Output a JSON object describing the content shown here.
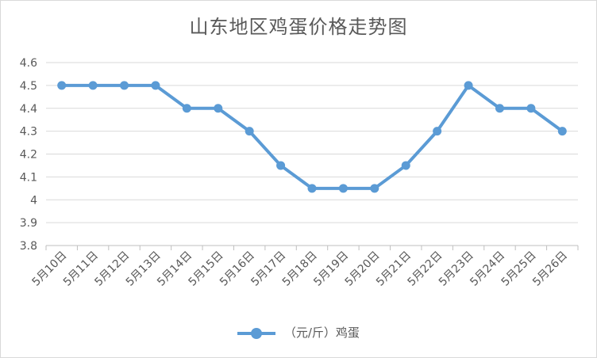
{
  "chart_data": {
    "type": "line",
    "title": "山东地区鸡蛋价格走势图",
    "categories": [
      "5月10日",
      "5月11日",
      "5月12日",
      "5月13日",
      "5月14日",
      "5月15日",
      "5月16日",
      "5月17日",
      "5月18日",
      "5月19日",
      "5月20日",
      "5月21日",
      "5月22日",
      "5月23日",
      "5月24日",
      "5月25日",
      "5月26日"
    ],
    "series": [
      {
        "name": "（元/斤）鸡蛋",
        "values": [
          4.5,
          4.5,
          4.5,
          4.5,
          4.4,
          4.4,
          4.3,
          4.15,
          4.05,
          4.05,
          4.05,
          4.15,
          4.3,
          4.5,
          4.4,
          4.4,
          4.3
        ],
        "color": "#5b9bd5"
      }
    ],
    "ylim": [
      3.8,
      4.6
    ],
    "yticks": [
      "3.8",
      "3.9",
      "4",
      "4.1",
      "4.2",
      "4.3",
      "4.4",
      "4.5",
      "4.6"
    ],
    "xlabel": "",
    "ylabel": "",
    "grid": true,
    "legend": "bottom"
  }
}
